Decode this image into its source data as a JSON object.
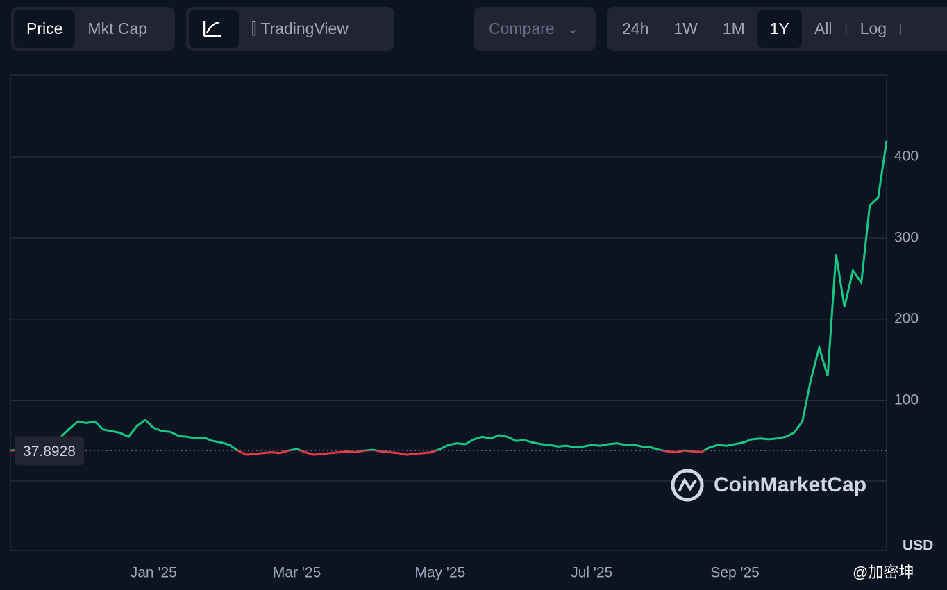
{
  "ui": {
    "tabs": [
      "Price",
      "Mkt Cap"
    ],
    "view_buttons": [
      "TradingView"
    ],
    "compare": "Compare",
    "ranges": [
      "24h",
      "1W",
      "1M",
      "1Y",
      "All"
    ],
    "log": "Log",
    "watermark": "CoinMarketCap",
    "currency": "USD",
    "source": "@加密坤"
  },
  "chart_data": {
    "type": "line",
    "categories": [
      null,
      null,
      null,
      null,
      null,
      null,
      null,
      null,
      null,
      null,
      null,
      null,
      null,
      null,
      null,
      null,
      null,
      "Jan '25",
      null,
      null,
      null,
      null,
      null,
      null,
      null,
      null,
      null,
      null,
      null,
      null,
      null,
      null,
      null,
      null,
      "Mar '25",
      null,
      null,
      null,
      null,
      null,
      null,
      null,
      null,
      null,
      null,
      null,
      null,
      null,
      null,
      null,
      null,
      "May '25",
      null,
      null,
      null,
      null,
      null,
      null,
      null,
      null,
      null,
      null,
      null,
      null,
      null,
      null,
      null,
      null,
      null,
      "Jul '25",
      null,
      null,
      null,
      null,
      null,
      null,
      null,
      null,
      null,
      null,
      null,
      null,
      null,
      null,
      null,
      null,
      "Sep '25",
      null,
      null,
      null,
      null,
      null,
      null,
      null,
      null,
      null,
      null,
      null,
      null,
      null,
      null,
      null,
      null,
      null,
      null
    ],
    "series": [
      {
        "values": [
          38,
          39,
          40,
          42,
          45,
          50,
          55,
          65,
          74,
          72,
          74,
          64,
          62,
          60,
          55,
          68,
          76,
          66,
          62,
          61,
          56,
          55,
          53,
          54,
          50,
          48,
          45,
          38,
          33,
          34,
          35,
          36,
          35,
          38,
          40,
          36,
          33,
          34,
          35,
          36,
          37,
          36,
          38,
          39,
          37,
          36,
          35,
          33,
          34,
          35,
          36,
          40,
          45,
          47,
          46,
          52,
          55,
          53,
          57,
          55,
          50,
          51,
          48,
          46,
          45,
          43,
          44,
          42,
          43,
          45,
          44,
          46,
          47,
          45,
          45,
          43,
          42,
          39,
          37,
          36,
          38,
          37,
          36,
          42,
          45,
          44,
          46,
          48,
          52,
          53,
          52,
          53,
          55,
          60,
          74,
          125,
          165,
          130,
          280,
          215,
          260,
          245,
          340,
          350,
          420
        ]
      }
    ],
    "baseline": 37.8928,
    "up_color": "#16c784",
    "down_color": "#ea3943",
    "ylim": [
      -85,
      501
    ],
    "yticks": [
      100,
      200,
      300,
      400
    ],
    "grid": true
  }
}
